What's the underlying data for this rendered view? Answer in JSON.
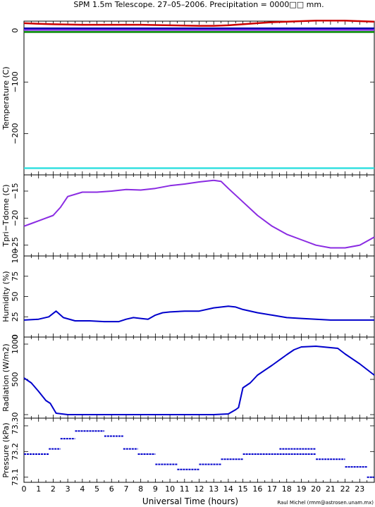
{
  "header": {
    "title": "SPM 1.5m Telescope. 27–05–2006. Precipitation = 0000□□ mm."
  },
  "footer": {
    "xlabel": "Universal Time (hours)",
    "credit": "Raul Michel (rmm@astrosen.unam.mx)"
  },
  "x_ticks": [
    "0",
    "1",
    "2",
    "3",
    "4",
    "5",
    "6",
    "7",
    "8",
    "9",
    "10",
    "11",
    "12",
    "13",
    "14",
    "15",
    "16",
    "17",
    "18",
    "19",
    "20",
    "21",
    "22",
    "23"
  ],
  "colors": {
    "red": "#cc0000",
    "navy": "#0000aa",
    "purple": "#7a2adf",
    "green": "#008800",
    "blue": "#0000cc",
    "cyan": "#33e0e0",
    "violet": "#8a2be2"
  },
  "chart_data": [
    {
      "type": "line",
      "ylabel": "Temperature (C)",
      "ylim": [
        -280,
        18
      ],
      "y_ticks": [
        {
          "v": 0,
          "label": "0"
        },
        {
          "v": -100,
          "label": "−100"
        },
        {
          "v": -200,
          "label": "−200"
        }
      ],
      "xlim": [
        0,
        24
      ],
      "series": [
        {
          "color": "#cc0000",
          "x": [
            0,
            1,
            2,
            4,
            6,
            8,
            10,
            12,
            13,
            14,
            15,
            16,
            17,
            18,
            19,
            20,
            21,
            22,
            23,
            24
          ],
          "y": [
            14,
            13,
            12,
            11,
            11,
            11,
            10,
            9,
            9,
            10,
            12,
            14,
            16,
            17,
            18,
            19,
            19,
            19,
            18,
            17
          ]
        },
        {
          "color": "#0000aa",
          "x": [
            0,
            24
          ],
          "y": [
            4,
            4
          ]
        },
        {
          "color": "#7a2adf",
          "x": [
            0,
            24
          ],
          "y": [
            1,
            1
          ]
        },
        {
          "color": "#008800",
          "x": [
            0,
            24
          ],
          "y": [
            -3,
            -3
          ]
        },
        {
          "color": "#33e0e0",
          "x": [
            0,
            24
          ],
          "y": [
            -267,
            -267
          ]
        }
      ]
    },
    {
      "type": "line",
      "ylabel": "Tpri−Tdome (C)",
      "ylim": [
        -27,
        -12
      ],
      "y_ticks": [
        {
          "v": -15,
          "label": "−15"
        },
        {
          "v": -20,
          "label": "−20"
        },
        {
          "v": -25,
          "label": "−25"
        }
      ],
      "xlim": [
        0,
        24
      ],
      "series": [
        {
          "color": "#8a2be2",
          "x": [
            0,
            0.5,
            1,
            1.5,
            2,
            2.5,
            3,
            4,
            5,
            6,
            7,
            8,
            9,
            10,
            11,
            12,
            13,
            13.5,
            14,
            15,
            16,
            17,
            18,
            19,
            20,
            21,
            22,
            23,
            24
          ],
          "y": [
            -21.5,
            -21,
            -20.5,
            -20,
            -19.5,
            -18,
            -16,
            -15.2,
            -15.2,
            -15,
            -14.7,
            -14.8,
            -14.5,
            -14,
            -13.7,
            -13.3,
            -13,
            -13.2,
            -14.5,
            -17,
            -19.5,
            -21.5,
            -23,
            -24,
            -25,
            -25.5,
            -25.5,
            -25,
            -23.5
          ]
        }
      ]
    },
    {
      "type": "line",
      "ylabel": "Humidity (%)",
      "ylim": [
        0,
        100
      ],
      "y_ticks": [
        {
          "v": 0,
          "label": "0"
        },
        {
          "v": 25,
          "label": "25"
        },
        {
          "v": 50,
          "label": "50"
        },
        {
          "v": 75,
          "label": "75"
        },
        {
          "v": 100,
          "label": "100"
        }
      ],
      "xlim": [
        0,
        24
      ],
      "series": [
        {
          "color": "#0000cc",
          "x": [
            0,
            1,
            1.7,
            2.2,
            2.7,
            3.5,
            4.5,
            5.5,
            6.5,
            7,
            7.5,
            8,
            8.5,
            9,
            9.5,
            10,
            11,
            12,
            13,
            14,
            14.5,
            15,
            16,
            17,
            18,
            19,
            20,
            21,
            22,
            23,
            24
          ],
          "y": [
            21,
            22,
            25,
            32,
            24,
            20,
            20,
            19,
            19,
            22,
            24,
            23,
            22,
            27,
            30,
            31,
            32,
            32,
            36,
            38,
            37,
            34,
            30,
            27,
            24,
            23,
            22,
            21,
            21,
            21,
            21
          ]
        }
      ]
    },
    {
      "type": "line",
      "ylabel": "Radiation (W/m2)",
      "ylim": [
        -50,
        1100
      ],
      "y_ticks": [
        {
          "v": 0,
          "label": "0"
        },
        {
          "v": 500,
          "label": "500"
        },
        {
          "v": 1000,
          "label": "1000"
        }
      ],
      "xlim": [
        0,
        24
      ],
      "series": [
        {
          "color": "#0000cc",
          "x": [
            0,
            0.5,
            1,
            1.5,
            1.8,
            2.2,
            3,
            6,
            9,
            12,
            13,
            14,
            14.5,
            14.7,
            15,
            15.5,
            16,
            17,
            18,
            18.5,
            19,
            20,
            21,
            21.5,
            22,
            23,
            24
          ],
          "y": [
            520,
            450,
            330,
            200,
            160,
            20,
            0,
            0,
            0,
            0,
            0,
            10,
            70,
            100,
            380,
            450,
            560,
            700,
            850,
            920,
            960,
            970,
            950,
            940,
            860,
            720,
            560
          ]
        }
      ]
    },
    {
      "type": "scatter",
      "ylabel": "Pressure (kPa)",
      "ylim": [
        73.08,
        73.33
      ],
      "y_ticks": [
        {
          "v": 73.1,
          "label": "73.1"
        },
        {
          "v": 73.2,
          "label": "73.2"
        },
        {
          "v": 73.3,
          "label": "73.3"
        }
      ],
      "xlim": [
        0,
        24
      ],
      "series": [
        {
          "color": "#0000cc",
          "segments": [
            {
              "x": [
                0,
                1.7
              ],
              "y": 73.19
            },
            {
              "x": [
                1.7,
                2.5
              ],
              "y": 73.21
            },
            {
              "x": [
                2.5,
                3.5
              ],
              "y": 73.25
            },
            {
              "x": [
                3.5,
                5.5
              ],
              "y": 73.28
            },
            {
              "x": [
                5.5,
                6.8
              ],
              "y": 73.26
            },
            {
              "x": [
                6.8,
                7.8
              ],
              "y": 73.21
            },
            {
              "x": [
                7.8,
                9
              ],
              "y": 73.19
            },
            {
              "x": [
                9,
                10.5
              ],
              "y": 73.15
            },
            {
              "x": [
                10.5,
                12
              ],
              "y": 73.13
            },
            {
              "x": [
                12,
                13.5
              ],
              "y": 73.15
            },
            {
              "x": [
                13.5,
                15
              ],
              "y": 73.17
            },
            {
              "x": [
                15,
                20
              ],
              "y": 73.19
            },
            {
              "x": [
                17.5,
                20
              ],
              "y": 73.21
            },
            {
              "x": [
                20,
                22
              ],
              "y": 73.17
            },
            {
              "x": [
                22,
                23.5
              ],
              "y": 73.14
            },
            {
              "x": [
                23.5,
                24
              ],
              "y": 73.1
            }
          ]
        }
      ]
    }
  ]
}
